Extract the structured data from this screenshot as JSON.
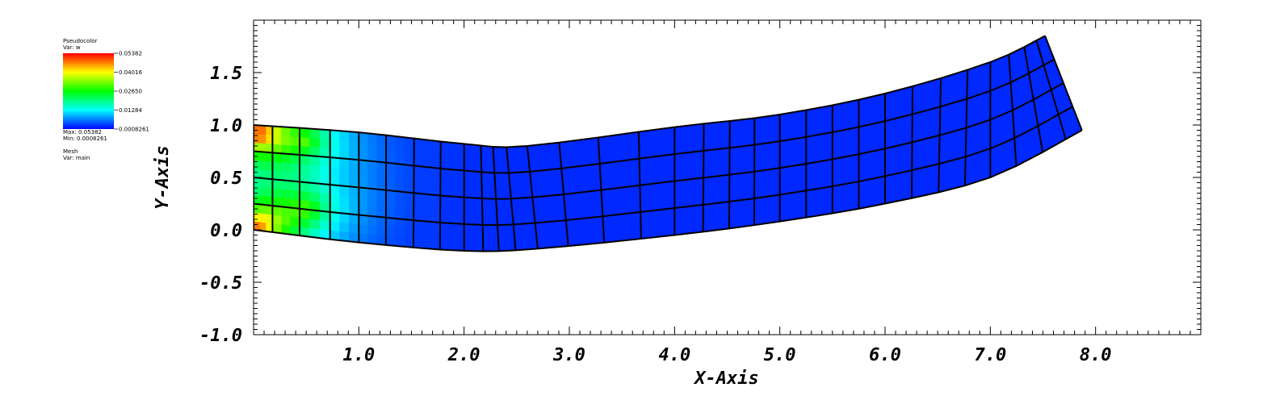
{
  "legend": {
    "pseudocolor_title": "Pseudocolor",
    "pseudocolor_var": "Var: w",
    "labels": [
      "0.05382",
      "0.04016",
      "0.02650",
      "0.01284",
      "0.0008261"
    ],
    "max_text": "Max: 0.05382",
    "min_text": "Min: 0.0008261",
    "mesh_title": "Mesh",
    "mesh_var": "Var: main"
  },
  "chart_data": {
    "type": "mesh",
    "title": "",
    "xlabel": "X-Axis",
    "ylabel": "Y-Axis",
    "xlim": [
      0,
      9.0
    ],
    "ylim": [
      -1.0,
      2.0
    ],
    "x_ticks": [
      1.0,
      2.0,
      3.0,
      4.0,
      5.0,
      6.0,
      7.0,
      8.0
    ],
    "x_tick_labels": [
      "1.0",
      "2.0",
      "3.0",
      "4.0",
      "5.0",
      "6.0",
      "7.0",
      "8.0"
    ],
    "y_ticks": [
      -1.0,
      -0.5,
      0.0,
      0.5,
      1.0,
      1.5
    ],
    "y_tick_labels": [
      "-1.0",
      "-0.5",
      "0.0",
      "0.5",
      "1.0",
      "1.5"
    ],
    "colormap": "hot_desaturated_rainbow",
    "color_range": [
      0.0008261,
      0.05382
    ],
    "mesh": {
      "columns": 32,
      "rows": 4,
      "bottom_edge": [
        [
          0.0,
          0.0
        ],
        [
          1.0,
          -0.12
        ],
        [
          2.0,
          -0.2
        ],
        [
          2.7,
          -0.18
        ],
        [
          4.0,
          -0.05
        ],
        [
          5.0,
          0.08
        ],
        [
          6.0,
          0.25
        ],
        [
          7.0,
          0.5
        ],
        [
          7.87,
          0.95
        ]
      ],
      "top_edge": [
        [
          0.0,
          1.0
        ],
        [
          1.0,
          0.93
        ],
        [
          2.0,
          0.82
        ],
        [
          2.6,
          0.8
        ],
        [
          4.0,
          0.98
        ],
        [
          5.0,
          1.1
        ],
        [
          6.0,
          1.3
        ],
        [
          7.0,
          1.6
        ],
        [
          7.52,
          1.85
        ]
      ],
      "hot_spots": [
        {
          "x": 0.05,
          "y": 0.92,
          "w": 0.05
        },
        {
          "x": 0.05,
          "y": 0.05,
          "w": 0.045
        },
        {
          "x": 0.5,
          "y": 0.2,
          "w": 0.02
        },
        {
          "x": 0.5,
          "y": 0.85,
          "w": 0.017
        }
      ],
      "base_w": 0.0008261
    }
  }
}
